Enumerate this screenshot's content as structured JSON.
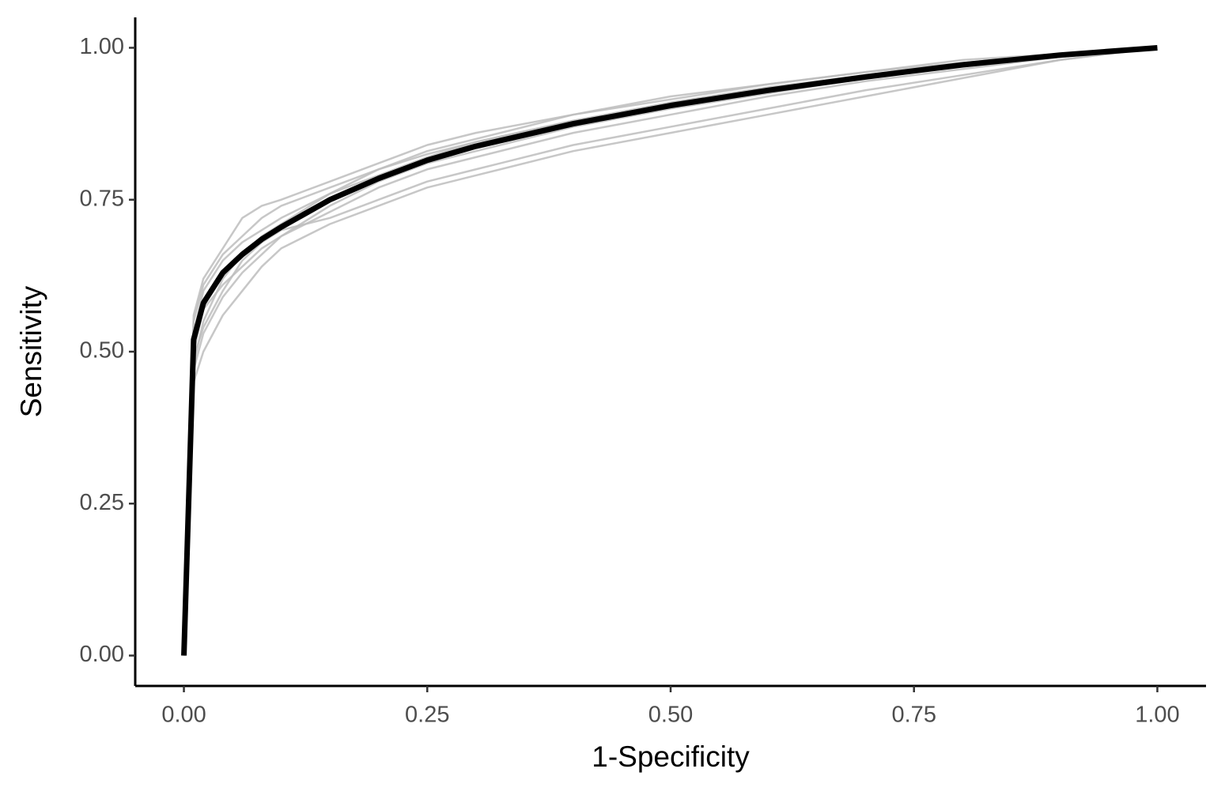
{
  "chart_data": {
    "type": "line",
    "x_label": "1-Specificity",
    "y_label": "Sensitivity",
    "x": [
      0,
      0.01,
      0.02,
      0.04,
      0.06,
      0.08,
      0.1,
      0.15,
      0.2,
      0.25,
      0.3,
      0.4,
      0.5,
      0.6,
      0.7,
      0.8,
      0.9,
      1.0
    ],
    "series": [
      {
        "color": "#bdbdbd",
        "values": [
          0,
          0.48,
          0.55,
          0.62,
          0.66,
          0.69,
          0.71,
          0.76,
          0.8,
          0.83,
          0.85,
          0.89,
          0.92,
          0.94,
          0.96,
          0.98,
          0.99,
          1
        ]
      },
      {
        "color": "#bdbdbd",
        "values": [
          0,
          0.56,
          0.62,
          0.67,
          0.72,
          0.74,
          0.75,
          0.78,
          0.81,
          0.84,
          0.86,
          0.89,
          0.915,
          0.94,
          0.96,
          0.975,
          0.99,
          1
        ]
      },
      {
        "color": "#bdbdbd",
        "values": [
          0,
          0.45,
          0.5,
          0.56,
          0.6,
          0.64,
          0.67,
          0.71,
          0.74,
          0.77,
          0.79,
          0.83,
          0.86,
          0.89,
          0.92,
          0.95,
          0.98,
          1
        ]
      },
      {
        "color": "#bdbdbd",
        "values": [
          0,
          0.5,
          0.57,
          0.61,
          0.64,
          0.67,
          0.69,
          0.73,
          0.77,
          0.8,
          0.82,
          0.86,
          0.89,
          0.92,
          0.945,
          0.965,
          0.985,
          1
        ]
      },
      {
        "color": "#bdbdbd",
        "values": [
          0,
          0.53,
          0.6,
          0.65,
          0.68,
          0.7,
          0.72,
          0.76,
          0.79,
          0.82,
          0.845,
          0.88,
          0.91,
          0.935,
          0.955,
          0.975,
          0.99,
          1
        ]
      },
      {
        "color": "#bdbdbd",
        "values": [
          0,
          0.47,
          0.53,
          0.59,
          0.63,
          0.66,
          0.69,
          0.74,
          0.78,
          0.81,
          0.83,
          0.87,
          0.9,
          0.925,
          0.95,
          0.97,
          0.985,
          1
        ]
      },
      {
        "color": "#bdbdbd",
        "values": [
          0,
          0.55,
          0.61,
          0.66,
          0.69,
          0.72,
          0.74,
          0.77,
          0.8,
          0.825,
          0.845,
          0.88,
          0.905,
          0.93,
          0.95,
          0.97,
          0.985,
          1
        ]
      },
      {
        "color": "#bdbdbd",
        "values": [
          0,
          0.49,
          0.54,
          0.6,
          0.65,
          0.68,
          0.7,
          0.72,
          0.75,
          0.78,
          0.8,
          0.84,
          0.87,
          0.9,
          0.93,
          0.955,
          0.98,
          1
        ]
      },
      {
        "color": "#000000",
        "values": [
          0,
          0.52,
          0.58,
          0.63,
          0.66,
          0.685,
          0.705,
          0.75,
          0.785,
          0.815,
          0.838,
          0.875,
          0.905,
          0.93,
          0.952,
          0.972,
          0.988,
          1.0
        ]
      }
    ],
    "xlim": [
      -0.05,
      1.05
    ],
    "ylim": [
      -0.05,
      1.05
    ],
    "xticks": [
      {
        "value": 0,
        "label": "0.00"
      },
      {
        "value": 0.25,
        "label": "0.25"
      },
      {
        "value": 0.5,
        "label": "0.50"
      },
      {
        "value": 0.75,
        "label": "0.75"
      },
      {
        "value": 1,
        "label": "1.00"
      }
    ],
    "yticks": [
      {
        "value": 0,
        "label": "0.00"
      },
      {
        "value": 0.25,
        "label": "0.25"
      },
      {
        "value": 0.5,
        "label": "0.50"
      },
      {
        "value": 0.75,
        "label": "0.75"
      },
      {
        "value": 1,
        "label": "1.00"
      }
    ],
    "grid": false
  }
}
